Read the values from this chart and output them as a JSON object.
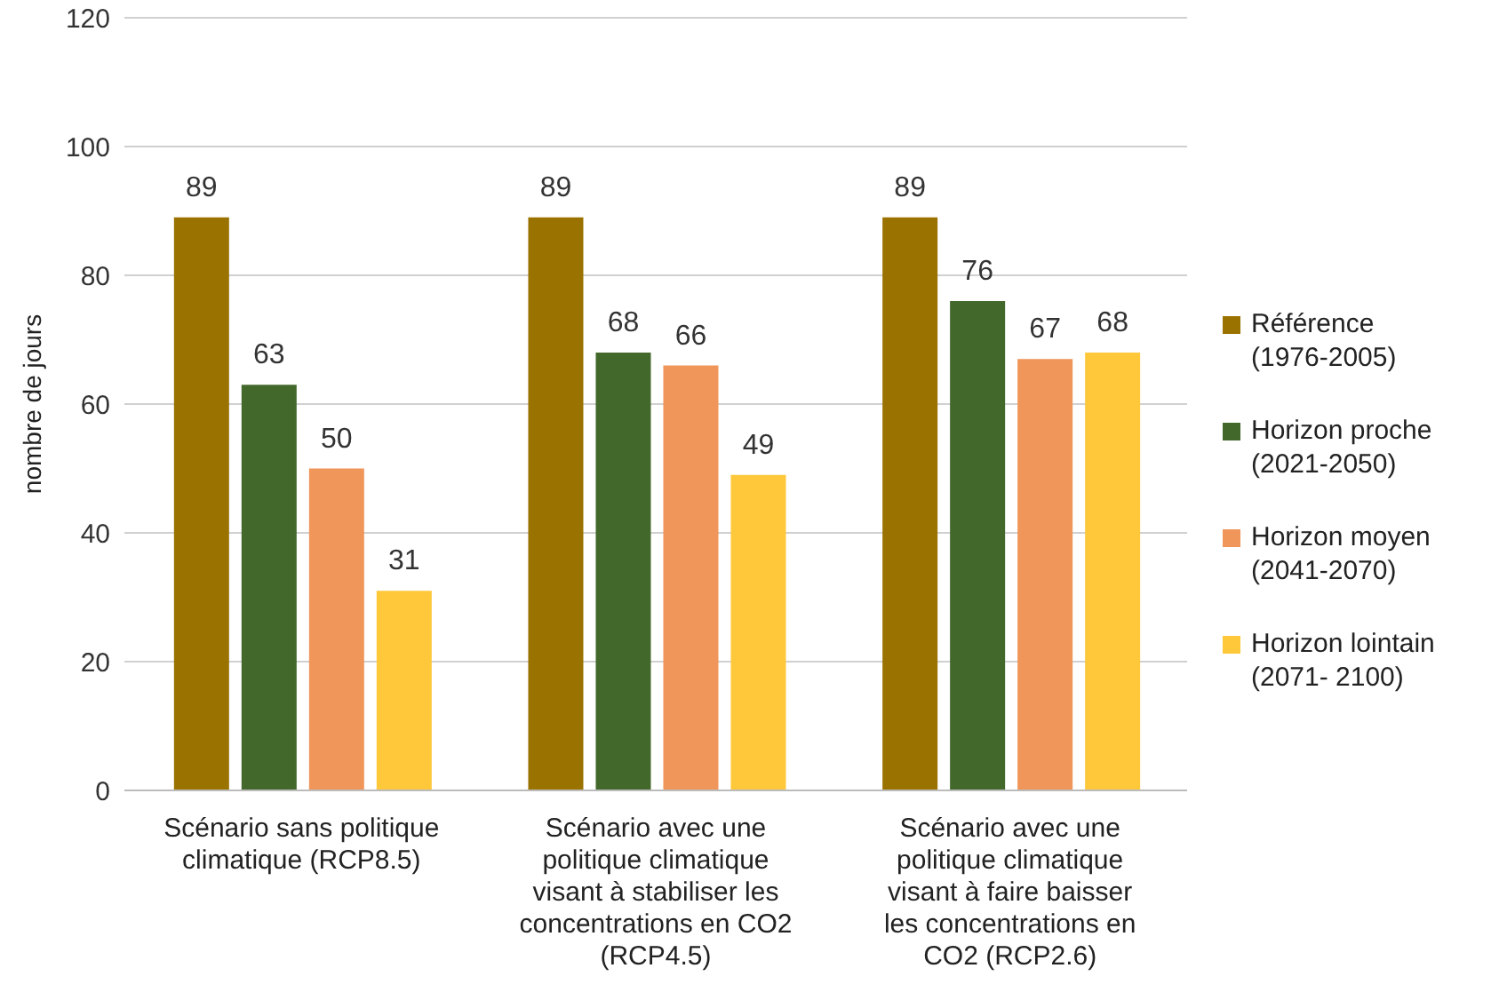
{
  "chart_data": {
    "type": "bar",
    "ylabel": "nombre de jours",
    "categories": [
      "Scénario sans politique climatique (RCP8.5)",
      "Scénario avec une politique climatique visant à stabiliser les concentrations en CO2 (RCP4.5)",
      "Scénario avec une politique climatique visant à faire baisser les concentrations en CO2 (RCP2.6)"
    ],
    "series": [
      {
        "name": "Référence (1976-2005)",
        "color": "#9a7200",
        "values": [
          89,
          89,
          89
        ]
      },
      {
        "name": "Horizon proche (2021-2050)",
        "color": "#43682b",
        "values": [
          63,
          68,
          76
        ]
      },
      {
        "name": "Horizon moyen (2041-2070)",
        "color": "#f0965a",
        "values": [
          50,
          66,
          67
        ]
      },
      {
        "name": "Horizon lointain (2071- 2100)",
        "color": "#ffc83a",
        "values": [
          31,
          49,
          68
        ]
      }
    ],
    "ylim": [
      0,
      120
    ],
    "yticks": [
      0,
      20,
      40,
      60,
      80,
      100,
      120
    ],
    "grid": "y",
    "legend": "right",
    "data_labels": true
  }
}
